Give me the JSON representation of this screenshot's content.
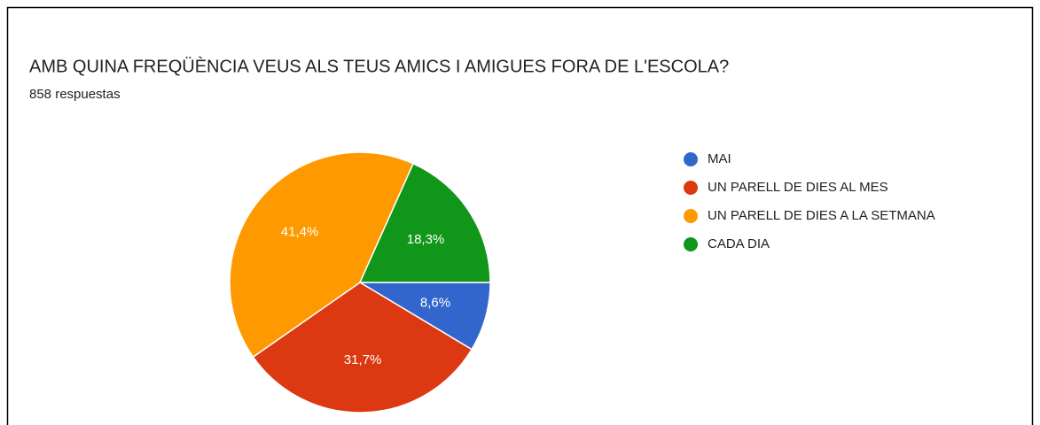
{
  "chart_data": {
    "type": "pie",
    "title": "AMB QUINA FREQÜÈNCIA VEUS ALS TEUS AMICS I AMIGUES FORA DE L'ESCOLA?",
    "subtitle": "858 respuestas",
    "categories": [
      "MAI",
      "UN PARELL DE DIES AL MES",
      "UN PARELL DE DIES A LA SETMANA",
      "CADA DIA"
    ],
    "values": [
      8.6,
      31.7,
      41.4,
      18.3
    ],
    "value_labels": [
      "8,6%",
      "31,7%",
      "41,4%",
      "18,3%"
    ],
    "colors": [
      "#3366cc",
      "#dc3912",
      "#ff9900",
      "#109618"
    ],
    "legend": "right"
  }
}
